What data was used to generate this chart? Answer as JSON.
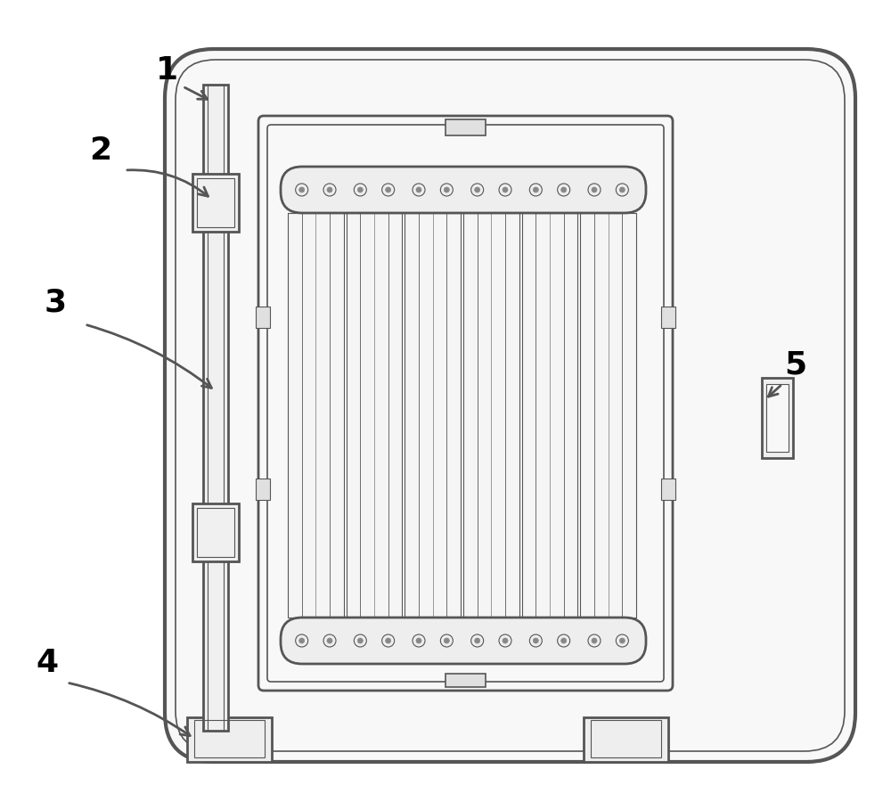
{
  "bg_color": "#ffffff",
  "line_color": "#555555",
  "face_color": "#ffffff",
  "gray_fill": "#f2f2f2",
  "label_color": "#000000",
  "figsize": [
    10.0,
    9.09
  ],
  "dpi": 100
}
